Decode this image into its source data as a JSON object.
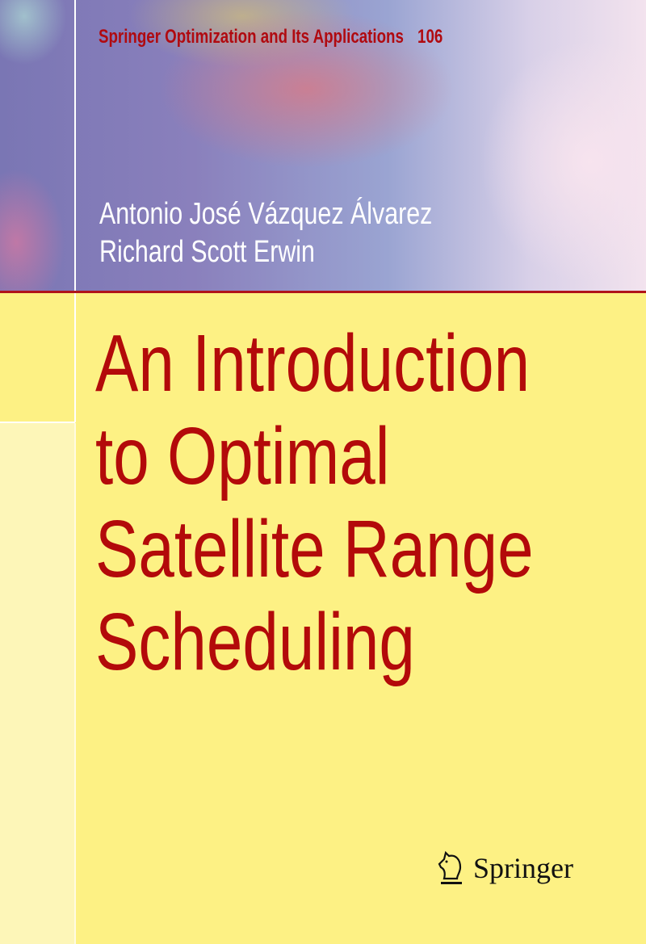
{
  "series": {
    "name": "Springer Optimization and Its Applications",
    "volume": "106"
  },
  "authors": [
    "Antonio José Vázquez Álvarez",
    "Richard Scott Erwin"
  ],
  "title_lines": [
    "An Introduction",
    "to Optimal",
    "Satellite Range",
    "Scheduling"
  ],
  "publisher": {
    "name": "Springer",
    "logo_icon": "knight-horse-icon"
  },
  "colors": {
    "title": "#b30a0a",
    "background": "#fdf184",
    "rule": "#b0141a"
  }
}
